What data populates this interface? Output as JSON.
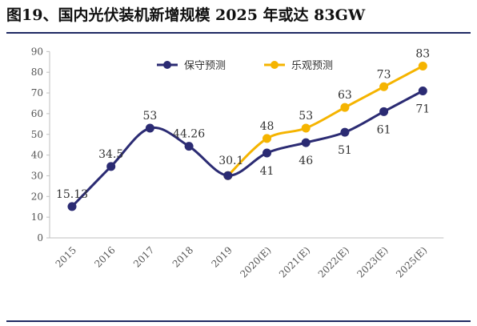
{
  "title": "图19、国内光伏装机新增规模 2025 年或达 83GW",
  "chart_data": {
    "type": "line",
    "categories": [
      "2015",
      "2016",
      "2017",
      "2018",
      "2019",
      "2020(E)",
      "2021(E)",
      "2022(E)",
      "2023(E)",
      "2025(E)"
    ],
    "ylim": [
      0,
      90
    ],
    "yticks": [
      0,
      10,
      20,
      30,
      40,
      50,
      60,
      70,
      80,
      90
    ],
    "grid": false,
    "legend_position": "top",
    "series": [
      {
        "name": "保守预测",
        "color": "#2b2b73",
        "values": [
          15.13,
          34.5,
          53,
          44.26,
          30.1,
          41,
          46,
          51,
          61,
          71
        ],
        "labels": [
          "15.13",
          "34.5",
          "53",
          "44.26",
          "30.1",
          "41",
          "46",
          "51",
          "61",
          "71"
        ]
      },
      {
        "name": "乐观预测",
        "color": "#f5b400",
        "values": [
          null,
          null,
          null,
          null,
          30.1,
          48,
          53,
          63,
          73,
          83
        ],
        "labels": [
          "",
          "",
          "",
          "",
          "",
          "48",
          "53",
          "63",
          "73",
          "83"
        ]
      }
    ]
  }
}
